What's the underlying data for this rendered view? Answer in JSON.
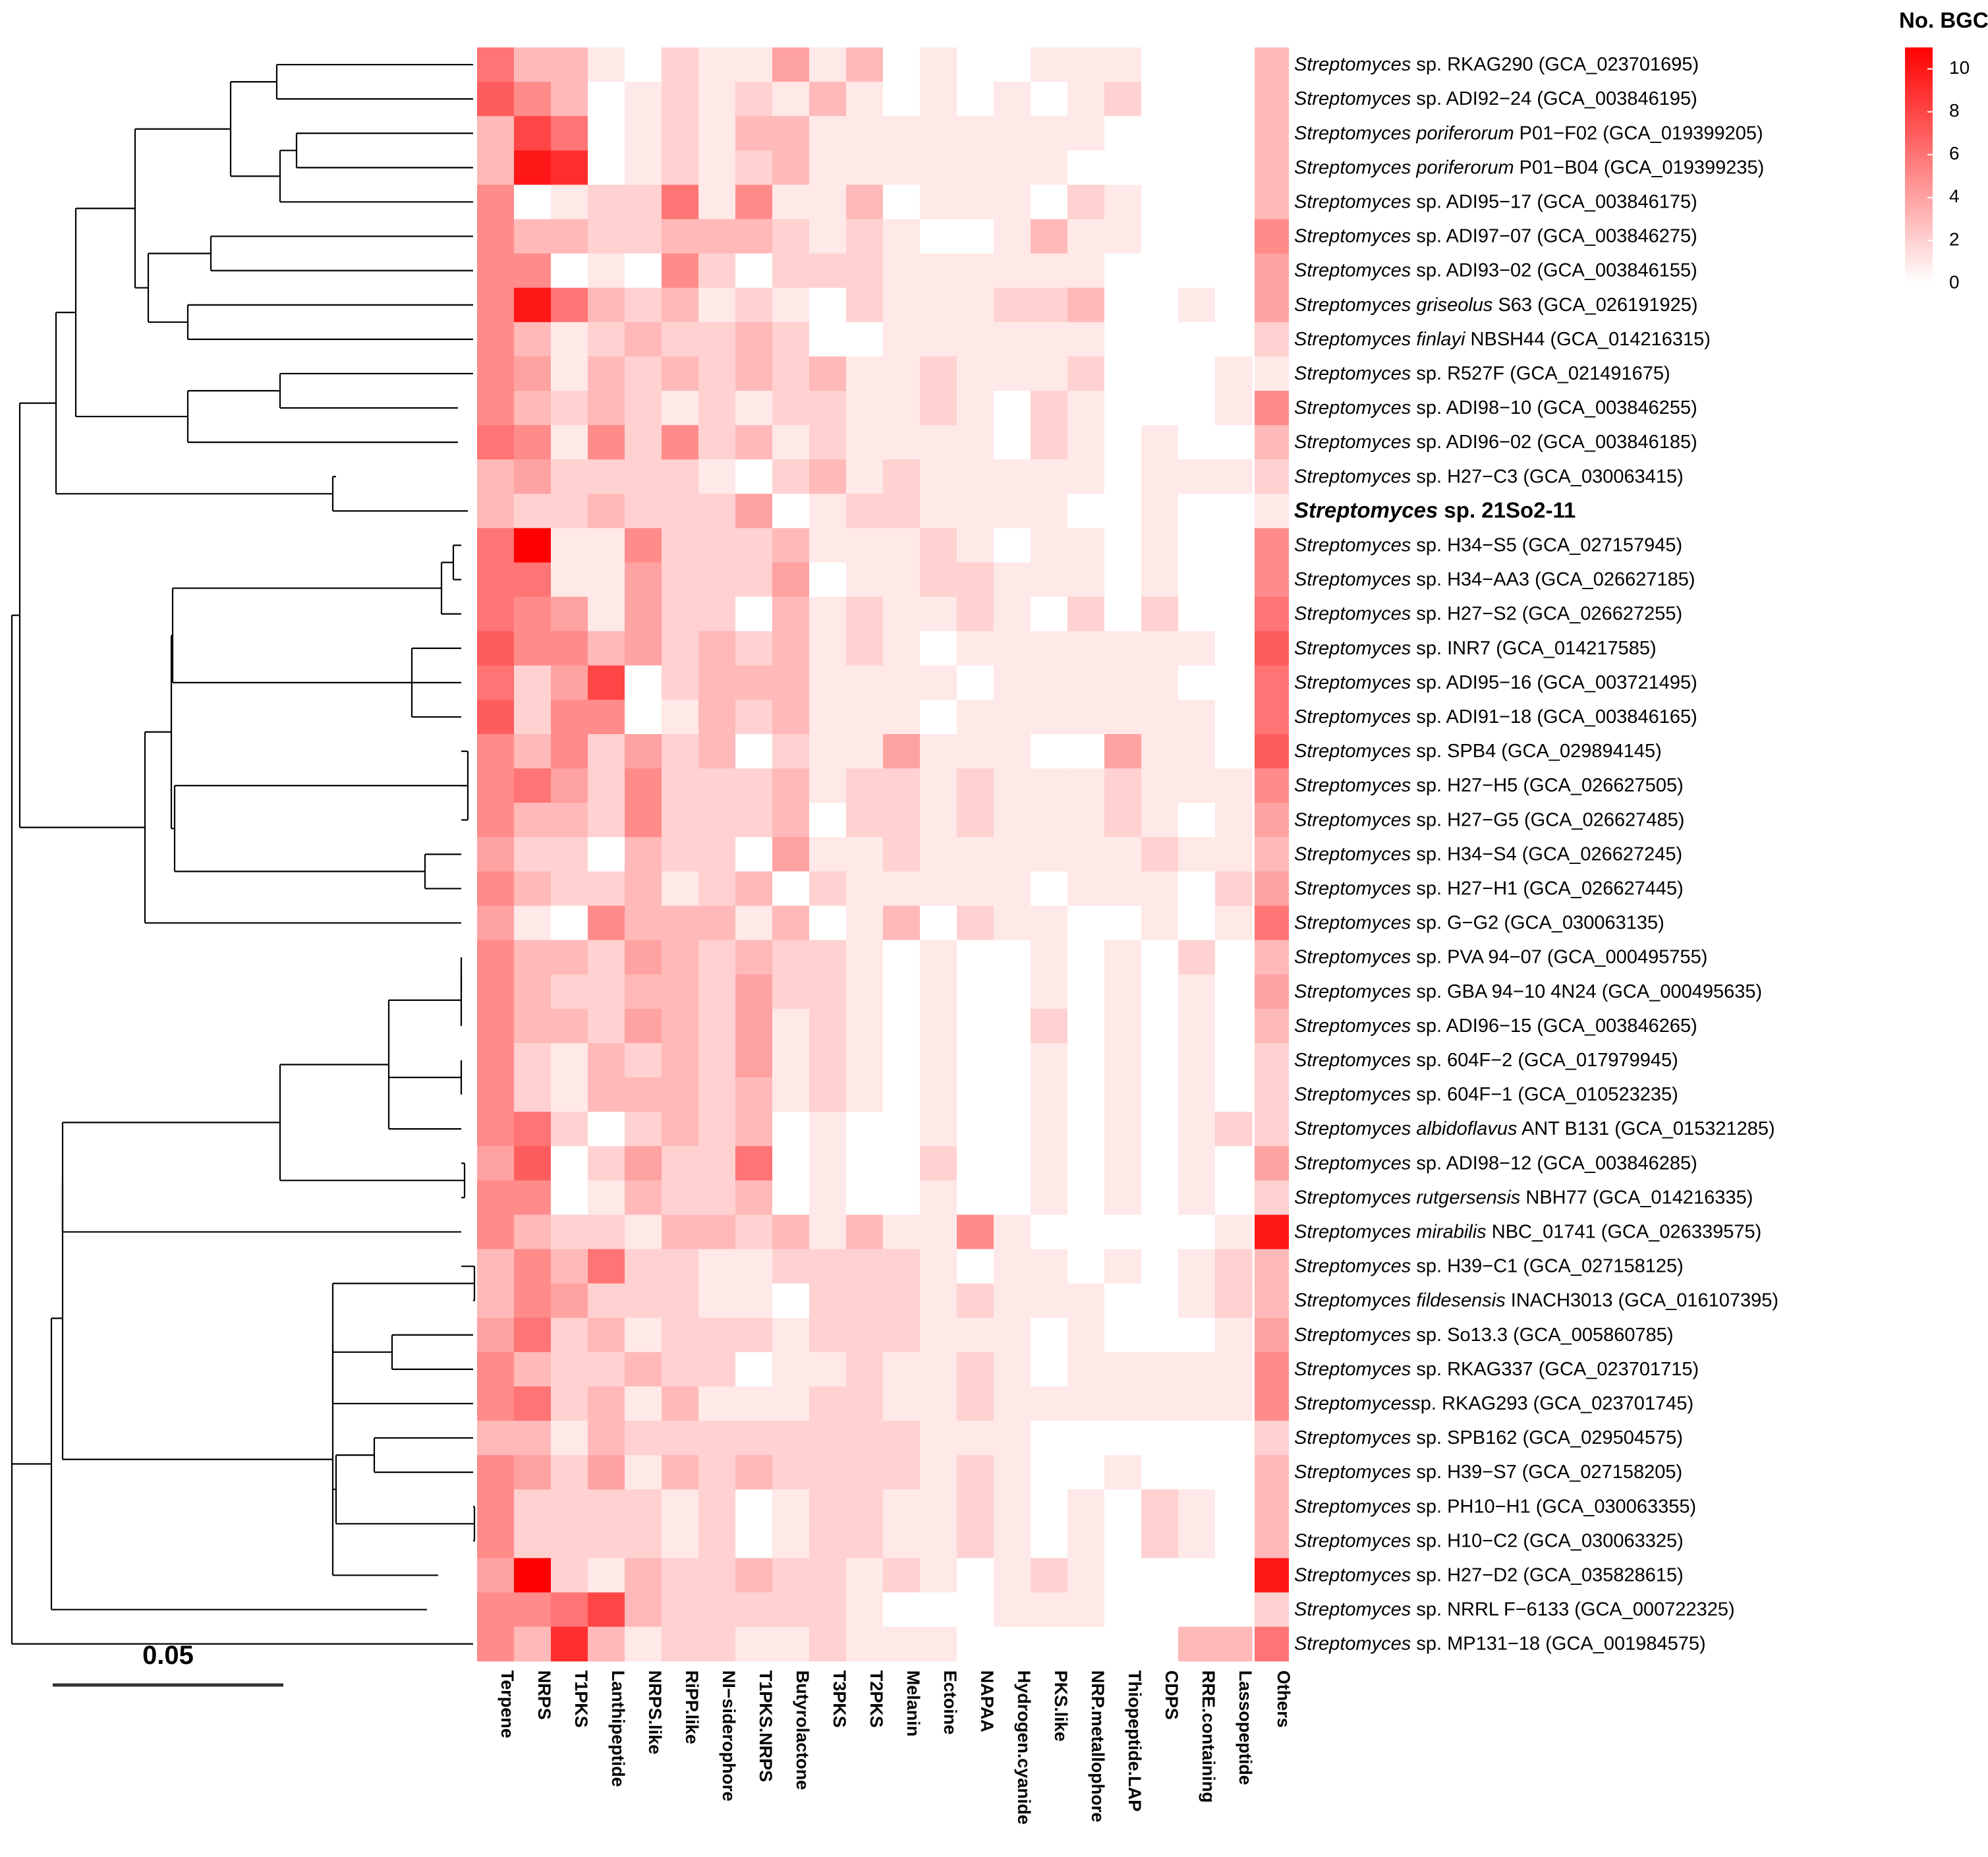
{
  "chart_data": {
    "type": "heatmap",
    "title": "",
    "legend": {
      "title": "No. BGCs",
      "ticks": [
        0,
        2,
        4,
        6,
        8,
        10
      ],
      "min": 0,
      "max": 11,
      "low_color": "#ffffff",
      "high_color": "#ff0000"
    },
    "scale_bar": {
      "label": "0.05"
    },
    "columns": [
      "Terpene",
      "NRPS",
      "T1PKS",
      "Lanthipeptide",
      "NRPS.like",
      "RiPP.like",
      "NI−siderophore",
      "T1PKS.NRPS",
      "Butyrolactone",
      "T3PKS",
      "T2PKS",
      "Melanin",
      "Ectoine",
      "NAPAA",
      "Hydrogen.cyanide",
      "PKS.like",
      "NRP.metallophore",
      "Thiopeptide.LAP",
      "CDPS",
      "RRE.containing",
      "Lassopeptide",
      "Others"
    ],
    "rows": [
      {
        "italic": "Streptomyces",
        "rest": " sp. RKAG290 (GCA_023701695)",
        "bold": false
      },
      {
        "italic": "Streptomyces",
        "rest": " sp. ADI92−24 (GCA_003846195)",
        "bold": false
      },
      {
        "italic": "Streptomyces poriferorum",
        "rest": " P01−F02 (GCA_019399205)",
        "bold": false
      },
      {
        "italic": "Streptomyces poriferorum",
        "rest": " P01−B04 (GCA_019399235)",
        "bold": false
      },
      {
        "italic": "Streptomyces",
        "rest": " sp. ADI95−17 (GCA_003846175)",
        "bold": false
      },
      {
        "italic": "Streptomyces",
        "rest": " sp. ADI97−07 (GCA_003846275)",
        "bold": false
      },
      {
        "italic": "Streptomyces",
        "rest": " sp. ADI93−02 (GCA_003846155)",
        "bold": false
      },
      {
        "italic": "Streptomyces griseolus",
        "rest": " S63 (GCA_026191925)",
        "bold": false
      },
      {
        "italic": "Streptomyces finlayi",
        "rest": " NBSH44 (GCA_014216315)",
        "bold": false
      },
      {
        "italic": "Streptomyces",
        "rest": " sp. R527F (GCA_021491675)",
        "bold": false
      },
      {
        "italic": "Streptomyces",
        "rest": " sp. ADI98−10 (GCA_003846255)",
        "bold": false
      },
      {
        "italic": "Streptomyces",
        "rest": " sp. ADI96−02 (GCA_003846185)",
        "bold": false
      },
      {
        "italic": "Streptomyces",
        "rest": " sp. H27−C3 (GCA_030063415)",
        "bold": false
      },
      {
        "italic": "Streptomyces",
        "rest": " sp. 21So2-11",
        "bold": true
      },
      {
        "italic": "Streptomyces",
        "rest": " sp. H34−S5 (GCA_027157945)",
        "bold": false
      },
      {
        "italic": "Streptomyces",
        "rest": " sp. H34−AA3 (GCA_026627185)",
        "bold": false
      },
      {
        "italic": "Streptomyces",
        "rest": " sp. H27−S2 (GCA_026627255)",
        "bold": false
      },
      {
        "italic": "Streptomyces",
        "rest": " sp. INR7 (GCA_014217585)",
        "bold": false
      },
      {
        "italic": "Streptomyces",
        "rest": " sp. ADI95−16 (GCA_003721495)",
        "bold": false
      },
      {
        "italic": "Streptomyces",
        "rest": " sp. ADI91−18 (GCA_003846165)",
        "bold": false
      },
      {
        "italic": "Streptomyces",
        "rest": " sp. SPB4 (GCA_029894145)",
        "bold": false
      },
      {
        "italic": "Streptomyces",
        "rest": " sp. H27−H5 (GCA_026627505)",
        "bold": false
      },
      {
        "italic": "Streptomyces",
        "rest": " sp. H27−G5 (GCA_026627485)",
        "bold": false
      },
      {
        "italic": "Streptomyces",
        "rest": " sp. H34−S4 (GCA_026627245)",
        "bold": false
      },
      {
        "italic": "Streptomyces",
        "rest": " sp. H27−H1 (GCA_026627445)",
        "bold": false
      },
      {
        "italic": "Streptomyces",
        "rest": " sp. G−G2 (GCA_030063135)",
        "bold": false
      },
      {
        "italic": "Streptomyces",
        "rest": " sp. PVA 94−07 (GCA_000495755)",
        "bold": false
      },
      {
        "italic": "Streptomyces",
        "rest": " sp. GBA 94−10 4N24 (GCA_000495635)",
        "bold": false
      },
      {
        "italic": "Streptomyces",
        "rest": " sp. ADI96−15 (GCA_003846265)",
        "bold": false
      },
      {
        "italic": "Streptomyces",
        "rest": " sp. 604F−2 (GCA_017979945)",
        "bold": false
      },
      {
        "italic": "Streptomyces",
        "rest": " sp. 604F−1 (GCA_010523235)",
        "bold": false
      },
      {
        "italic": "Streptomyces albidoflavus",
        "rest": " ANT B131 (GCA_015321285)",
        "bold": false
      },
      {
        "italic": "Streptomyces",
        "rest": " sp. ADI98−12 (GCA_003846285)",
        "bold": false
      },
      {
        "italic": "Streptomyces rutgersensis",
        "rest": " NBH77 (GCA_014216335)",
        "bold": false
      },
      {
        "italic": "Streptomyces mirabilis",
        "rest": " NBC_01741 (GCA_026339575)",
        "bold": false
      },
      {
        "italic": "Streptomyces",
        "rest": " sp. H39−C1 (GCA_027158125)",
        "bold": false
      },
      {
        "italic": "Streptomyces fildesensis",
        "rest": " INACH3013 (GCA_016107395)",
        "bold": false
      },
      {
        "italic": "Streptomyces",
        "rest": " sp. So13.3 (GCA_005860785)",
        "bold": false
      },
      {
        "italic": "Streptomyces",
        "rest": " sp. RKAG337 (GCA_023701715)",
        "bold": false
      },
      {
        "italic": "Streptomycess",
        "rest": "p. RKAG293 (GCA_023701745)",
        "bold": false
      },
      {
        "italic": "Streptomyces",
        "rest": " sp. SPB162 (GCA_029504575)",
        "bold": false
      },
      {
        "italic": "Streptomyces",
        "rest": " sp. H39−S7 (GCA_027158205)",
        "bold": false
      },
      {
        "italic": "Streptomyces",
        "rest": " sp. PH10−H1 (GCA_030063355)",
        "bold": false
      },
      {
        "italic": "Streptomyces",
        "rest": " sp. H10−C2 (GCA_030063325)",
        "bold": false
      },
      {
        "italic": "Streptomyces",
        "rest": " sp. H27−D2 (GCA_035828615)",
        "bold": false
      },
      {
        "italic": "Streptomyces",
        "rest": " sp. NRRL F−6133 (GCA_000722325)",
        "bold": false
      },
      {
        "italic": "Streptomyces",
        "rest": " sp. MP131−18 (GCA_001984575)",
        "bold": false
      }
    ],
    "values": [
      [
        6,
        3,
        3,
        1,
        0,
        2,
        1,
        1,
        4,
        1,
        3,
        0,
        1,
        0,
        0,
        1,
        1,
        1,
        0,
        0,
        0,
        3
      ],
      [
        7,
        5,
        3,
        0,
        1,
        2,
        1,
        2,
        1,
        3,
        1,
        0,
        1,
        0,
        1,
        0,
        1,
        2,
        0,
        0,
        0,
        3
      ],
      [
        3,
        8,
        6,
        0,
        1,
        2,
        1,
        3,
        3,
        1,
        1,
        1,
        1,
        1,
        1,
        1,
        1,
        0,
        0,
        0,
        0,
        3
      ],
      [
        3,
        10,
        9,
        0,
        1,
        2,
        1,
        2,
        3,
        1,
        1,
        1,
        1,
        1,
        1,
        1,
        0,
        0,
        0,
        0,
        0,
        3
      ],
      [
        5,
        0,
        1,
        2,
        2,
        6,
        1,
        5,
        1,
        1,
        3,
        0,
        1,
        1,
        1,
        0,
        2,
        1,
        0,
        0,
        0,
        3
      ],
      [
        5,
        3,
        3,
        2,
        2,
        3,
        3,
        3,
        2,
        1,
        2,
        1,
        0,
        0,
        1,
        3,
        1,
        1,
        0,
        0,
        0,
        5
      ],
      [
        5,
        5,
        0,
        1,
        0,
        5,
        2,
        0,
        2,
        2,
        2,
        1,
        1,
        1,
        1,
        1,
        1,
        0,
        0,
        0,
        0,
        4
      ],
      [
        5,
        10,
        6,
        3,
        2,
        3,
        1,
        2,
        1,
        0,
        2,
        1,
        1,
        1,
        2,
        2,
        3,
        0,
        0,
        1,
        0,
        4
      ],
      [
        5,
        3,
        1,
        2,
        3,
        2,
        2,
        3,
        2,
        0,
        0,
        1,
        1,
        1,
        1,
        1,
        1,
        0,
        0,
        0,
        0,
        2
      ],
      [
        5,
        4,
        1,
        3,
        2,
        3,
        2,
        3,
        2,
        3,
        1,
        1,
        2,
        1,
        1,
        1,
        2,
        0,
        0,
        0,
        1,
        1
      ],
      [
        5,
        3,
        2,
        3,
        2,
        1,
        2,
        1,
        2,
        2,
        1,
        1,
        2,
        1,
        0,
        2,
        1,
        0,
        0,
        0,
        1,
        5
      ],
      [
        6,
        5,
        1,
        5,
        2,
        5,
        2,
        3,
        1,
        2,
        1,
        1,
        1,
        1,
        0,
        2,
        1,
        0,
        1,
        0,
        0,
        3
      ],
      [
        3,
        4,
        2,
        2,
        2,
        2,
        1,
        0,
        2,
        3,
        1,
        2,
        1,
        1,
        1,
        1,
        1,
        0,
        1,
        1,
        1,
        2
      ],
      [
        3,
        2,
        2,
        3,
        2,
        2,
        2,
        4,
        0,
        1,
        2,
        2,
        1,
        1,
        1,
        1,
        0,
        0,
        1,
        0,
        0,
        1
      ],
      [
        6,
        11,
        1,
        1,
        5,
        2,
        2,
        2,
        3,
        1,
        1,
        1,
        2,
        1,
        0,
        1,
        1,
        0,
        1,
        0,
        0,
        5
      ],
      [
        6,
        6,
        1,
        1,
        4,
        2,
        2,
        2,
        4,
        0,
        1,
        1,
        2,
        2,
        1,
        1,
        1,
        0,
        1,
        0,
        0,
        5
      ],
      [
        6,
        5,
        4,
        1,
        4,
        2,
        2,
        0,
        3,
        1,
        2,
        1,
        1,
        2,
        1,
        0,
        2,
        0,
        2,
        0,
        0,
        6
      ],
      [
        7,
        5,
        5,
        3,
        4,
        2,
        3,
        2,
        3,
        1,
        2,
        1,
        0,
        1,
        1,
        1,
        1,
        1,
        1,
        1,
        0,
        7
      ],
      [
        6,
        2,
        4,
        8,
        0,
        2,
        3,
        3,
        3,
        1,
        1,
        1,
        1,
        0,
        1,
        1,
        1,
        1,
        1,
        0,
        0,
        6
      ],
      [
        7,
        2,
        5,
        5,
        0,
        1,
        3,
        2,
        3,
        1,
        1,
        1,
        0,
        1,
        1,
        1,
        1,
        1,
        1,
        1,
        0,
        6
      ],
      [
        5,
        3,
        5,
        2,
        4,
        2,
        3,
        0,
        2,
        1,
        1,
        4,
        1,
        1,
        1,
        0,
        0,
        4,
        1,
        1,
        0,
        7
      ],
      [
        5,
        6,
        4,
        2,
        5,
        2,
        2,
        2,
        3,
        1,
        2,
        2,
        1,
        2,
        1,
        1,
        1,
        2,
        1,
        1,
        1,
        5
      ],
      [
        5,
        3,
        3,
        2,
        5,
        2,
        2,
        2,
        3,
        0,
        2,
        2,
        1,
        2,
        1,
        1,
        1,
        2,
        1,
        0,
        1,
        4
      ],
      [
        4,
        2,
        2,
        0,
        3,
        2,
        2,
        0,
        4,
        1,
        1,
        2,
        1,
        1,
        1,
        1,
        1,
        1,
        2,
        1,
        1,
        3
      ],
      [
        5,
        3,
        2,
        2,
        3,
        1,
        2,
        3,
        0,
        2,
        1,
        1,
        1,
        1,
        1,
        0,
        1,
        1,
        1,
        0,
        2,
        4
      ],
      [
        4,
        1,
        0,
        5,
        3,
        3,
        3,
        1,
        3,
        0,
        1,
        3,
        0,
        2,
        1,
        1,
        0,
        0,
        1,
        0,
        1,
        6
      ],
      [
        5,
        3,
        3,
        2,
        4,
        3,
        2,
        3,
        2,
        2,
        1,
        0,
        1,
        0,
        0,
        1,
        0,
        1,
        0,
        2,
        0,
        3
      ],
      [
        5,
        3,
        2,
        2,
        3,
        3,
        2,
        4,
        2,
        2,
        1,
        0,
        1,
        0,
        0,
        1,
        0,
        1,
        0,
        1,
        0,
        4
      ],
      [
        5,
        3,
        3,
        2,
        4,
        3,
        2,
        4,
        1,
        2,
        1,
        0,
        1,
        0,
        0,
        2,
        0,
        1,
        0,
        1,
        0,
        3
      ],
      [
        5,
        2,
        1,
        3,
        2,
        3,
        2,
        4,
        1,
        2,
        1,
        0,
        1,
        0,
        0,
        1,
        0,
        1,
        0,
        1,
        0,
        2
      ],
      [
        5,
        2,
        1,
        3,
        3,
        3,
        2,
        3,
        1,
        2,
        1,
        0,
        1,
        0,
        0,
        1,
        0,
        1,
        0,
        1,
        0,
        2
      ],
      [
        5,
        6,
        2,
        0,
        2,
        3,
        2,
        3,
        0,
        1,
        0,
        0,
        1,
        0,
        0,
        1,
        0,
        1,
        0,
        1,
        2,
        2
      ],
      [
        4,
        7,
        0,
        2,
        4,
        2,
        2,
        6,
        0,
        1,
        0,
        0,
        2,
        0,
        0,
        1,
        0,
        1,
        0,
        1,
        0,
        4
      ],
      [
        5,
        5,
        0,
        1,
        3,
        2,
        2,
        3,
        0,
        1,
        0,
        0,
        1,
        0,
        0,
        1,
        0,
        1,
        0,
        1,
        0,
        2
      ],
      [
        5,
        3,
        2,
        2,
        1,
        3,
        3,
        2,
        3,
        1,
        3,
        1,
        1,
        5,
        1,
        0,
        0,
        0,
        0,
        0,
        1,
        10
      ],
      [
        3,
        5,
        3,
        6,
        2,
        2,
        1,
        1,
        2,
        2,
        2,
        2,
        1,
        0,
        1,
        1,
        0,
        1,
        0,
        1,
        2,
        3
      ],
      [
        3,
        5,
        4,
        2,
        2,
        2,
        1,
        1,
        0,
        2,
        2,
        2,
        1,
        2,
        1,
        1,
        1,
        0,
        0,
        1,
        2,
        3
      ],
      [
        4,
        6,
        2,
        3,
        1,
        2,
        2,
        2,
        1,
        2,
        2,
        2,
        1,
        1,
        1,
        0,
        1,
        0,
        0,
        0,
        1,
        4
      ],
      [
        5,
        3,
        2,
        2,
        3,
        2,
        2,
        0,
        1,
        1,
        2,
        1,
        1,
        2,
        1,
        0,
        1,
        1,
        1,
        1,
        1,
        5
      ],
      [
        5,
        6,
        2,
        3,
        1,
        3,
        1,
        1,
        1,
        2,
        2,
        1,
        1,
        2,
        1,
        1,
        1,
        1,
        1,
        1,
        1,
        5
      ],
      [
        3,
        3,
        1,
        3,
        2,
        2,
        2,
        2,
        2,
        2,
        2,
        2,
        1,
        1,
        1,
        0,
        0,
        0,
        0,
        0,
        0,
        2
      ],
      [
        5,
        4,
        2,
        4,
        1,
        3,
        2,
        3,
        2,
        2,
        2,
        2,
        1,
        2,
        1,
        0,
        0,
        1,
        0,
        0,
        0,
        3
      ],
      [
        5,
        2,
        2,
        2,
        2,
        1,
        2,
        0,
        1,
        2,
        2,
        1,
        1,
        2,
        1,
        0,
        1,
        0,
        2,
        1,
        0,
        3
      ],
      [
        5,
        2,
        2,
        2,
        2,
        1,
        2,
        0,
        1,
        2,
        2,
        1,
        1,
        2,
        1,
        0,
        1,
        0,
        2,
        1,
        0,
        3
      ],
      [
        4,
        11,
        2,
        1,
        3,
        2,
        2,
        3,
        2,
        2,
        1,
        2,
        1,
        0,
        1,
        2,
        1,
        0,
        0,
        0,
        0,
        10
      ],
      [
        5,
        5,
        6,
        8,
        3,
        2,
        2,
        2,
        2,
        2,
        1,
        0,
        0,
        0,
        1,
        1,
        1,
        0,
        0,
        0,
        0,
        2
      ],
      [
        5,
        3,
        9,
        3,
        1,
        2,
        2,
        1,
        1,
        2,
        1,
        1,
        1,
        0,
        0,
        0,
        0,
        0,
        0,
        3,
        3,
        6
      ]
    ]
  }
}
